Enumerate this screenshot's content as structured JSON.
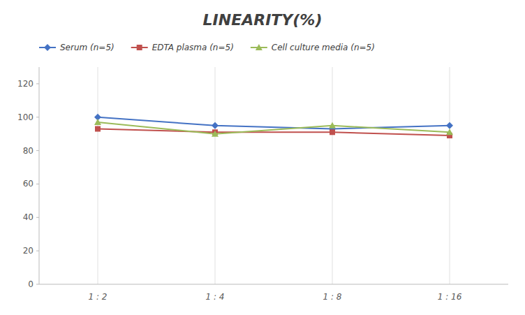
{
  "chart_data": {
    "type": "line",
    "title": "LINEARITY(%)",
    "categories": [
      "1 : 2",
      "1 : 4",
      "1 : 8",
      "1 : 16"
    ],
    "series": [
      {
        "name": "Serum (n=5)",
        "color": "#4472C4",
        "marker": "diamond",
        "values": [
          100,
          95,
          93,
          95
        ]
      },
      {
        "name": "EDTA plasma (n=5)",
        "color": "#C0504D",
        "marker": "square",
        "values": [
          93,
          91,
          91,
          89
        ]
      },
      {
        "name": "Cell culture media (n=5)",
        "color": "#9BBB59",
        "marker": "triangle",
        "values": [
          97,
          90,
          95,
          91
        ]
      }
    ],
    "ylim": [
      0,
      130
    ],
    "yticks": [
      0,
      20,
      40,
      60,
      80,
      100,
      120
    ],
    "grid": true,
    "legend": "top"
  }
}
